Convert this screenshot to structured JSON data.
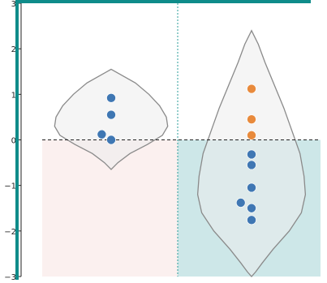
{
  "chart_data": {
    "type": "violin",
    "title": "",
    "xlabel": "",
    "ylabel": "",
    "ylim": [
      -3,
      3
    ],
    "yticks": [
      -3,
      -2,
      -1,
      0,
      1,
      2,
      3
    ],
    "ytick_labels": [
      "−3",
      "−2",
      "−1",
      "0",
      "1",
      "2",
      "3"
    ],
    "reference_line": {
      "y": 0,
      "style": "dashed",
      "color": "#000000"
    },
    "grid": false,
    "regions": [
      {
        "color": "#fbf0ef",
        "y_from": -3,
        "y_to": 0,
        "group": 0
      },
      {
        "color": "#cde7e8",
        "y_from": -3,
        "y_to": 0,
        "group": 1
      }
    ],
    "colors": {
      "frame": "#0f8c8a",
      "divider": "#2a9c9a",
      "violin_fill": "#ececec",
      "violin_stroke": "#8a8a8a",
      "point_blue": "#3f77b3",
      "point_orange": "#e88a3c",
      "axis": "#222222"
    },
    "violins": [
      {
        "name": "",
        "center": 0,
        "min": -0.65,
        "max": 1.55,
        "max_half_width": 0.42,
        "profile": [
          [
            1.55,
            0.0
          ],
          [
            1.45,
            0.06
          ],
          [
            1.25,
            0.18
          ],
          [
            1.0,
            0.28
          ],
          [
            0.75,
            0.36
          ],
          [
            0.5,
            0.41
          ],
          [
            0.3,
            0.42
          ],
          [
            0.1,
            0.38
          ],
          [
            -0.1,
            0.27
          ],
          [
            -0.3,
            0.14
          ],
          [
            -0.5,
            0.05
          ],
          [
            -0.65,
            0.0
          ]
        ],
        "points": [
          {
            "y": 0.92,
            "dx": 0.0,
            "color": "blue"
          },
          {
            "y": 0.55,
            "dx": 0.0,
            "color": "blue"
          },
          {
            "y": 0.12,
            "dx": -0.07,
            "color": "blue"
          },
          {
            "y": 0.0,
            "dx": 0.0,
            "color": "blue"
          }
        ]
      },
      {
        "name": "",
        "center": 1,
        "min": -3.0,
        "max": 2.4,
        "max_half_width": 0.4,
        "profile": [
          [
            2.4,
            0.0
          ],
          [
            2.1,
            0.05
          ],
          [
            1.7,
            0.1
          ],
          [
            1.2,
            0.17
          ],
          [
            0.7,
            0.24
          ],
          [
            0.2,
            0.3
          ],
          [
            -0.3,
            0.36
          ],
          [
            -0.8,
            0.39
          ],
          [
            -1.2,
            0.4
          ],
          [
            -1.6,
            0.37
          ],
          [
            -2.0,
            0.28
          ],
          [
            -2.4,
            0.16
          ],
          [
            -2.7,
            0.08
          ],
          [
            -2.9,
            0.03
          ],
          [
            -3.0,
            0.0
          ]
        ],
        "points": [
          {
            "y": 1.12,
            "dx": 0.0,
            "color": "orange"
          },
          {
            "y": 0.45,
            "dx": 0.0,
            "color": "orange"
          },
          {
            "y": 0.1,
            "dx": 0.0,
            "color": "orange"
          },
          {
            "y": -0.32,
            "dx": 0.0,
            "color": "blue"
          },
          {
            "y": -0.55,
            "dx": 0.0,
            "color": "blue"
          },
          {
            "y": -1.05,
            "dx": 0.0,
            "color": "blue"
          },
          {
            "y": -1.38,
            "dx": -0.08,
            "color": "blue"
          },
          {
            "y": -1.5,
            "dx": 0.0,
            "color": "blue"
          },
          {
            "y": -1.76,
            "dx": 0.0,
            "color": "blue"
          }
        ]
      }
    ]
  }
}
